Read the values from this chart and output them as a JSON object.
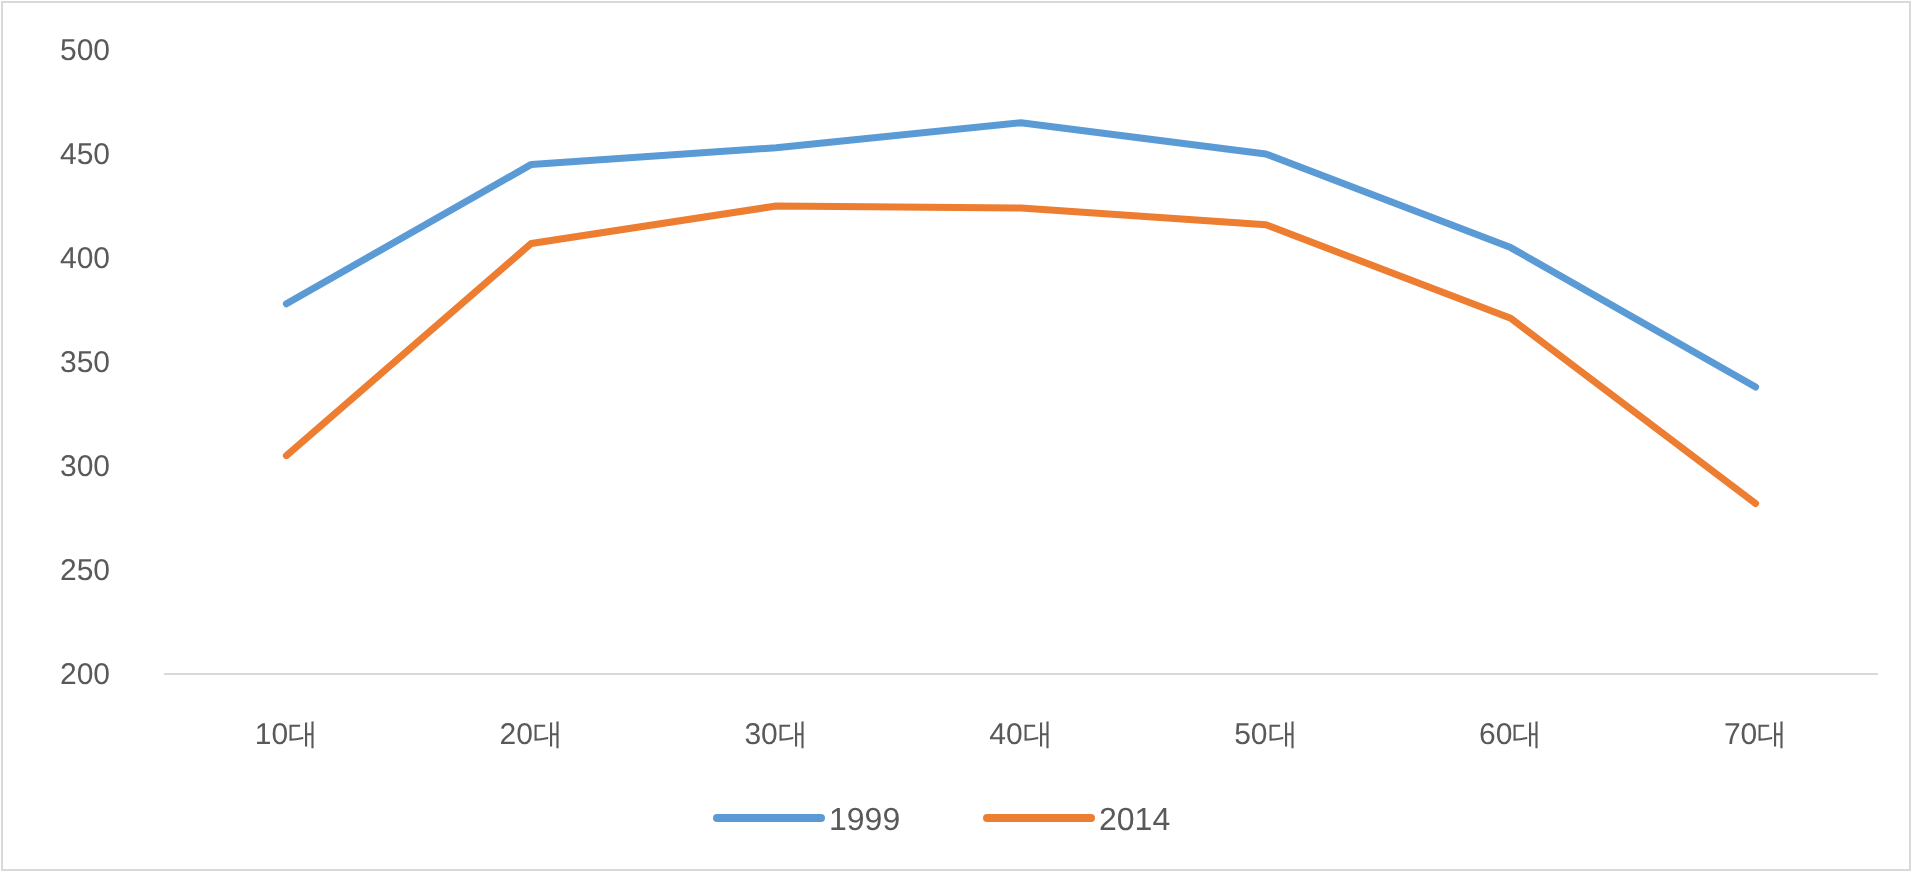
{
  "chart_data": {
    "type": "line",
    "categories": [
      "10대",
      "20대",
      "30대",
      "40대",
      "50대",
      "60대",
      "70대"
    ],
    "series": [
      {
        "name": "1999",
        "color": "#5b9bd5",
        "values": [
          378,
          445,
          453,
          465,
          450,
          405,
          338
        ]
      },
      {
        "name": "2014",
        "color": "#ed7d31",
        "values": [
          305,
          407,
          425,
          424,
          416,
          371,
          282
        ]
      }
    ],
    "ylim": [
      200,
      500
    ],
    "yticks": [
      200,
      250,
      300,
      350,
      400,
      450,
      500
    ],
    "grid": false,
    "legend": "bottom",
    "marker": "none",
    "line_style": "solid"
  }
}
